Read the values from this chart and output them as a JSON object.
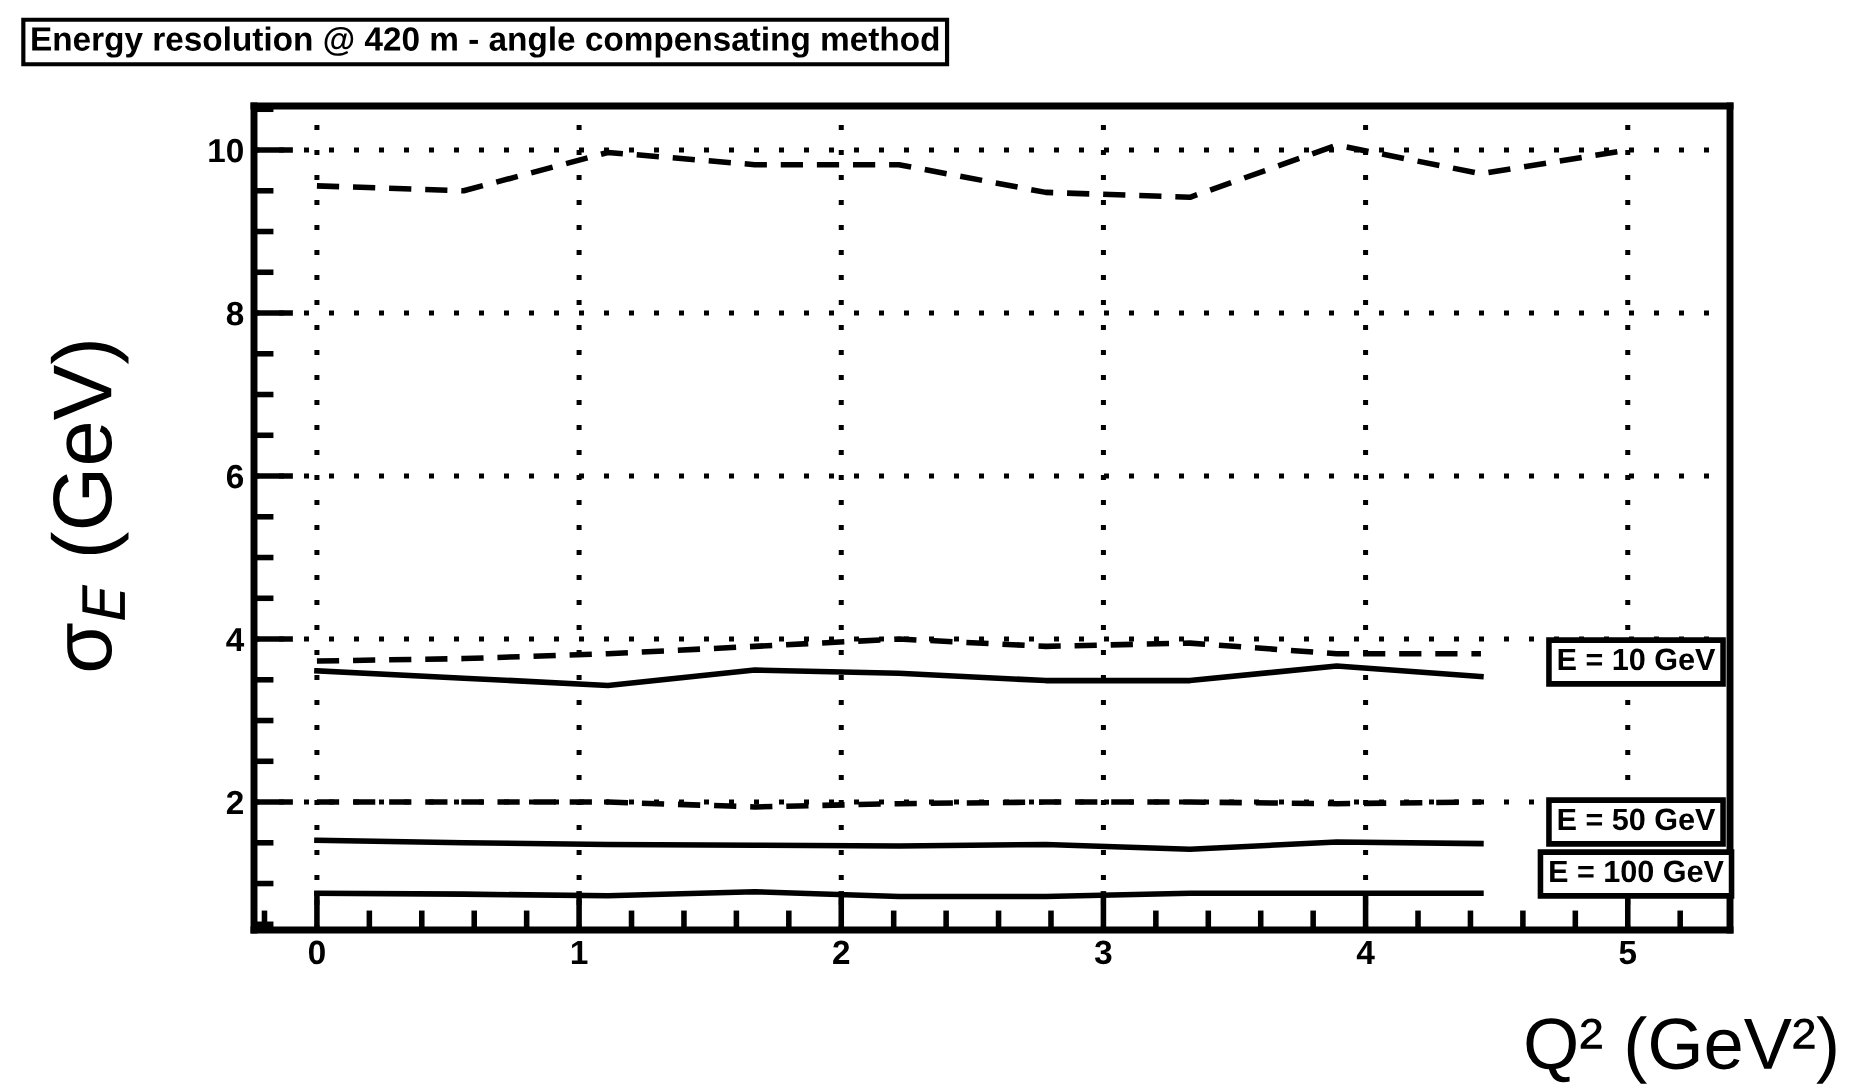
{
  "chart_data": {
    "type": "line",
    "title": "Energy resolution @ 420 m - angle compensating method",
    "xlabel": "Q² (GeV²)",
    "ylabel": "σ$_{E}$ (GeV)",
    "x": [
      0,
      0.56,
      1.11,
      1.67,
      2.22,
      2.78,
      3.33,
      3.89,
      4.44,
      5.0
    ],
    "series": [
      {
        "color": "#000000",
        "line_style": "dashed",
        "values": [
          9.56,
          9.5,
          9.97,
          9.82,
          9.82,
          9.48,
          9.42,
          10.06,
          9.71,
          10.0
        ]
      },
      {
        "color": "#000000",
        "line_style": "dashed",
        "values": [
          3.73,
          3.76,
          3.82,
          3.91,
          4.0,
          3.91,
          3.95,
          3.82,
          3.82,
          null
        ]
      },
      {
        "color": "#000000",
        "line_style": "solid",
        "values": [
          3.61,
          3.52,
          3.43,
          3.62,
          3.58,
          3.49,
          3.49,
          3.67,
          3.54,
          null
        ]
      },
      {
        "color": "#000000",
        "line_style": "dashed",
        "values": [
          2.0,
          2.0,
          2.0,
          1.94,
          1.98,
          2.0,
          2.0,
          1.98,
          2.0,
          null
        ]
      },
      {
        "color": "#000000",
        "line_style": "solid",
        "values": [
          1.53,
          1.5,
          1.48,
          1.47,
          1.46,
          1.48,
          1.42,
          1.51,
          1.49,
          null
        ]
      },
      {
        "color": "#000000",
        "line_style": "solid",
        "values": [
          0.88,
          0.87,
          0.85,
          0.9,
          0.84,
          0.84,
          0.88,
          0.88,
          0.88,
          null
        ]
      }
    ],
    "annotations": [
      "E = 10 GeV",
      "E = 50 GeV",
      "E = 100 GeV"
    ],
    "xlim": [
      -0.24,
      5.39
    ],
    "xticks": [
      0,
      1,
      2,
      3,
      4,
      5
    ],
    "ylim": [
      0.43,
      10.54
    ],
    "yticks": [
      2,
      4,
      6,
      8,
      10
    ],
    "grid": true,
    "legend": false,
    "marker": "none"
  }
}
